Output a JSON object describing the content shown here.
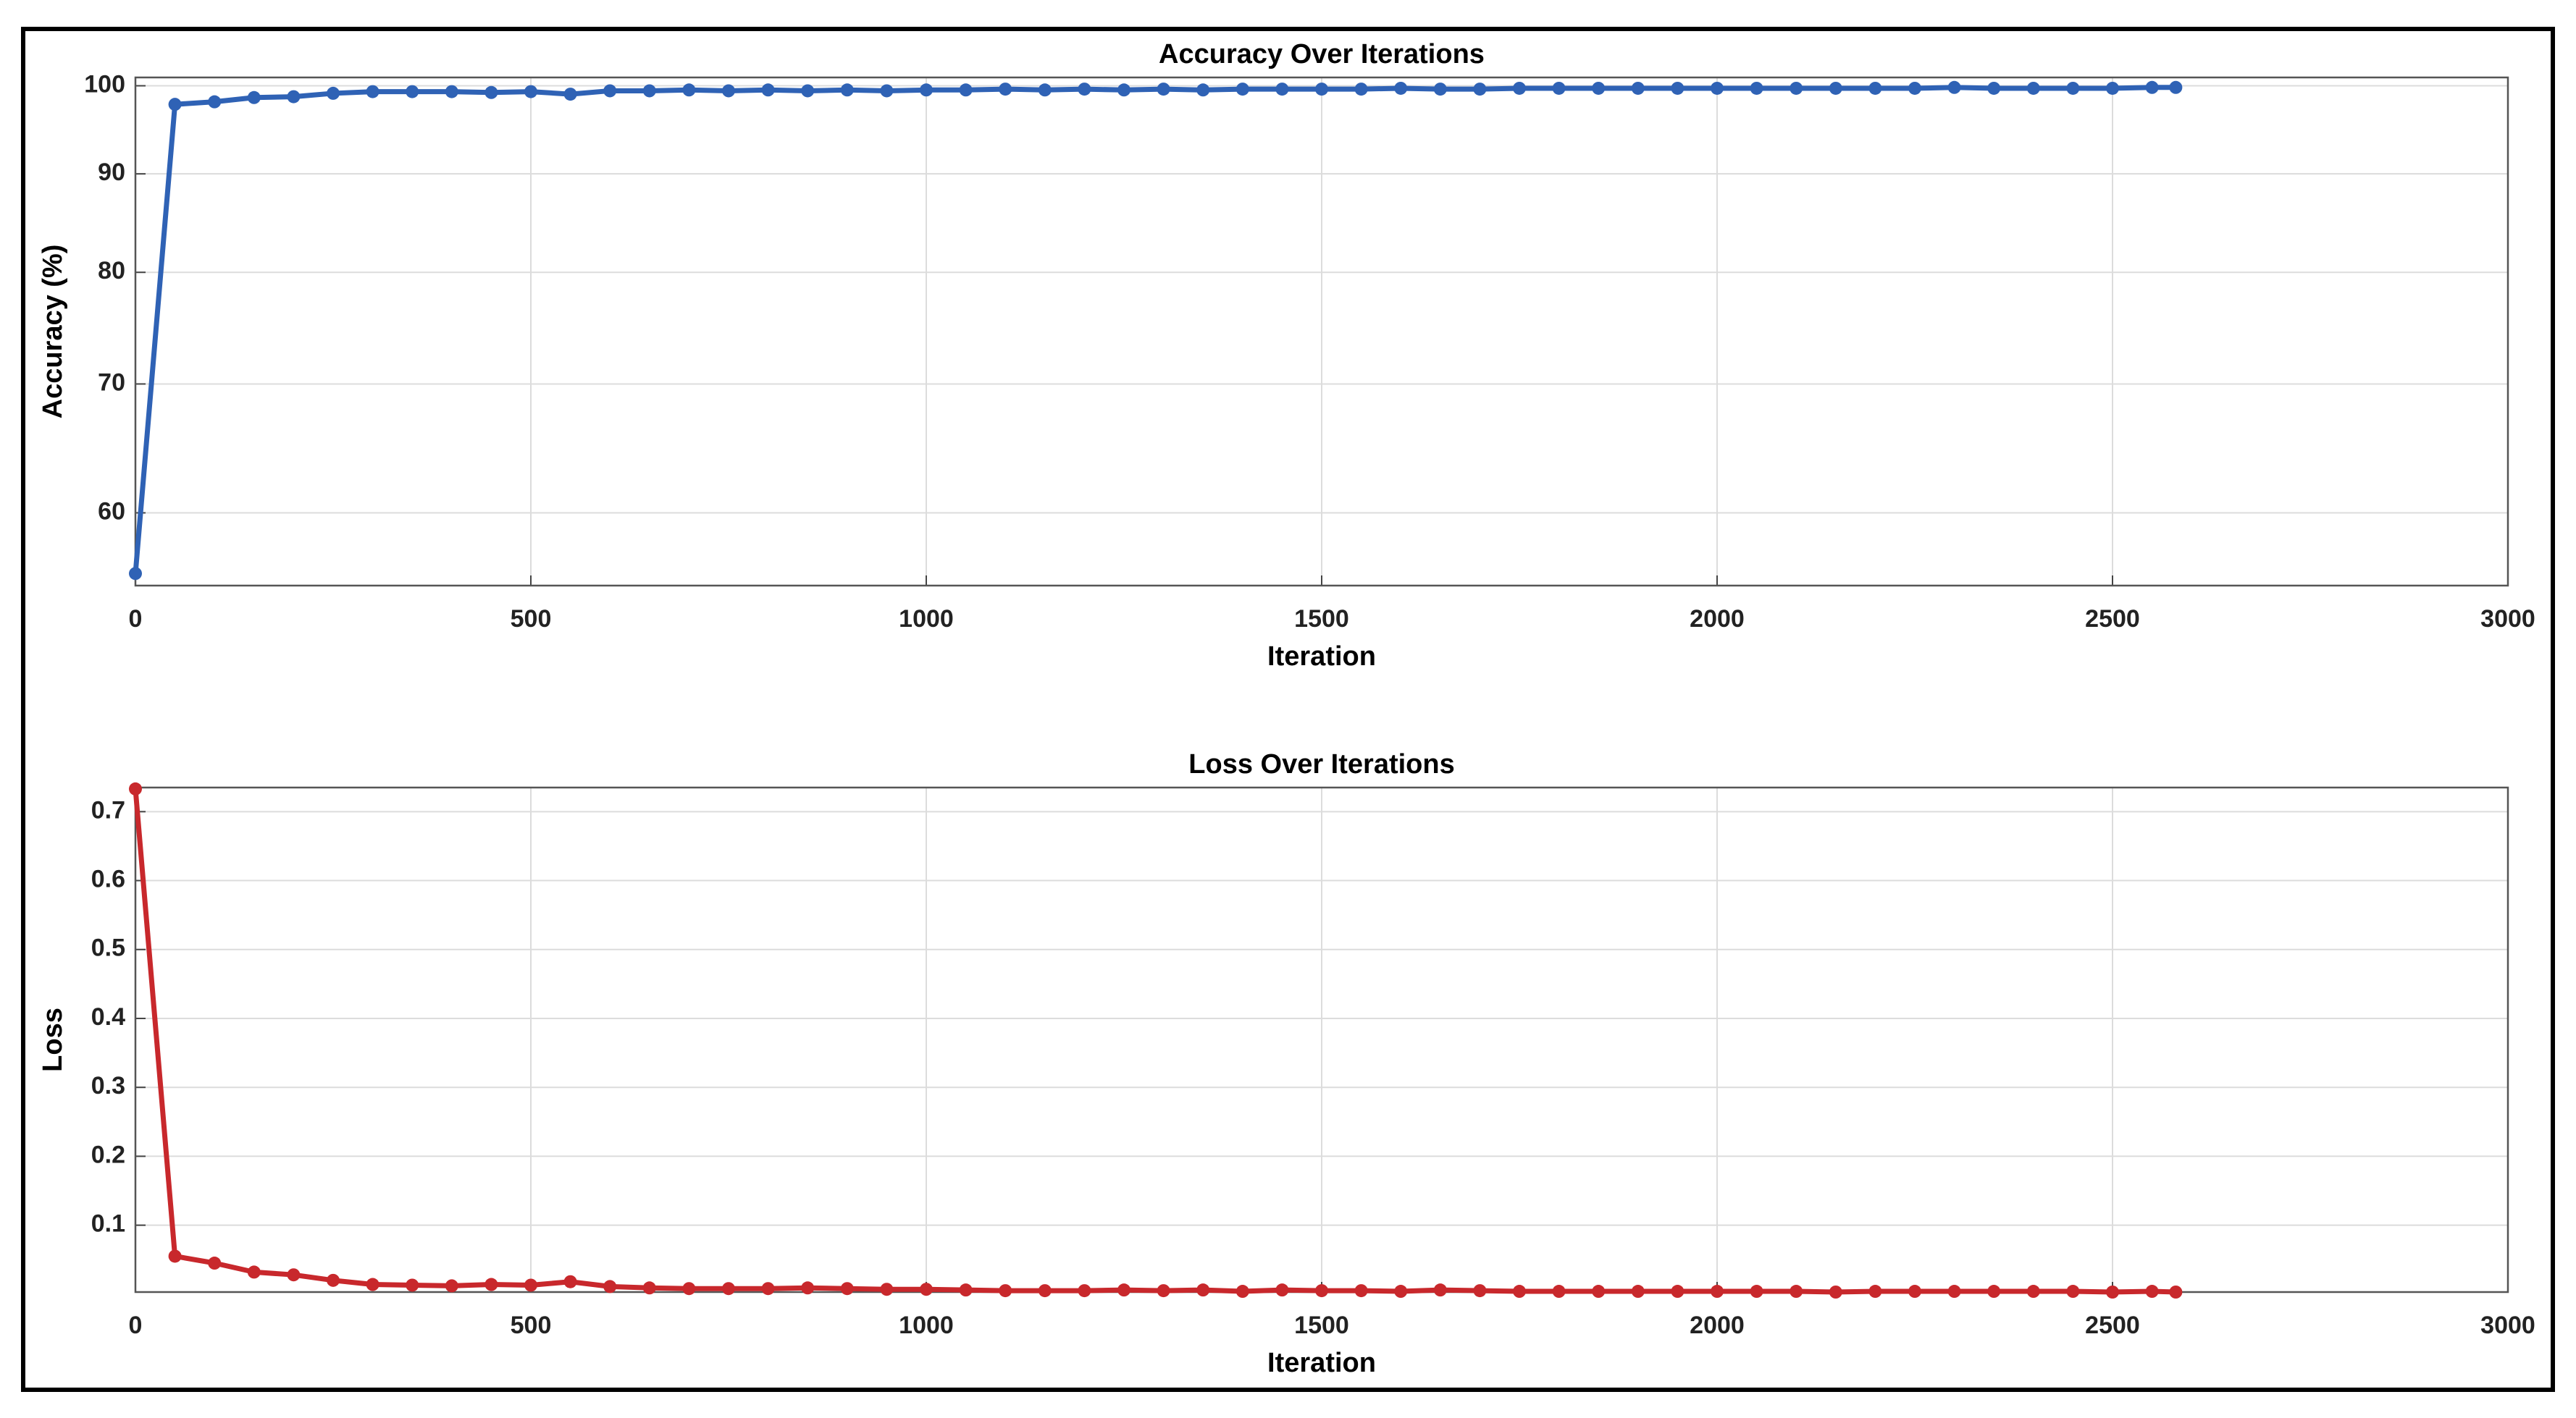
{
  "chart_data": [
    {
      "type": "line",
      "title": "Accuracy Over Iterations",
      "xlabel": "Iteration",
      "ylabel": "Accuracy (%)",
      "x": [
        0,
        50,
        100,
        150,
        200,
        250,
        300,
        350,
        400,
        450,
        500,
        550,
        600,
        650,
        700,
        750,
        800,
        850,
        900,
        950,
        1000,
        1050,
        1100,
        1150,
        1200,
        1250,
        1300,
        1350,
        1400,
        1450,
        1500,
        1550,
        1600,
        1650,
        1700,
        1750,
        1800,
        1850,
        1900,
        1950,
        2000,
        2050,
        2100,
        2150,
        2200,
        2250,
        2300,
        2350,
        2400,
        2450,
        2500,
        2550,
        2580
      ],
      "series": [
        {
          "color": "#2f62b5",
          "values": [
            55.8,
            97.8,
            98.1,
            98.6,
            98.7,
            99.1,
            99.3,
            99.3,
            99.3,
            99.2,
            99.3,
            99.0,
            99.4,
            99.4,
            99.5,
            99.4,
            99.5,
            99.4,
            99.5,
            99.4,
            99.5,
            99.5,
            99.6,
            99.5,
            99.6,
            99.5,
            99.6,
            99.5,
            99.6,
            99.6,
            99.6,
            99.6,
            99.7,
            99.6,
            99.6,
            99.7,
            99.7,
            99.7,
            99.7,
            99.7,
            99.7,
            99.7,
            99.7,
            99.7,
            99.7,
            99.7,
            99.8,
            99.7,
            99.7,
            99.7,
            99.7,
            99.8,
            99.8
          ]
        }
      ],
      "xlim": [
        0,
        3000
      ],
      "xticks": [
        0,
        500,
        1000,
        1500,
        2000,
        2500,
        3000
      ],
      "ylim": [
        55,
        101
      ],
      "yticks": [
        60,
        70,
        80,
        90,
        100
      ],
      "yscale": "log",
      "grid": true
    },
    {
      "type": "line",
      "title": "Loss Over Iterations",
      "xlabel": "Iteration",
      "ylabel": "Loss",
      "x": [
        0,
        50,
        100,
        150,
        200,
        250,
        300,
        350,
        400,
        450,
        500,
        550,
        600,
        650,
        700,
        750,
        800,
        850,
        900,
        950,
        1000,
        1050,
        1100,
        1150,
        1200,
        1250,
        1300,
        1350,
        1400,
        1450,
        1500,
        1550,
        1600,
        1650,
        1700,
        1750,
        1800,
        1850,
        1900,
        1950,
        2000,
        2050,
        2100,
        2150,
        2200,
        2250,
        2300,
        2350,
        2400,
        2450,
        2500,
        2550,
        2580
      ],
      "series": [
        {
          "color": "#c8282c",
          "values": [
            0.733,
            0.055,
            0.045,
            0.032,
            0.028,
            0.02,
            0.014,
            0.013,
            0.012,
            0.014,
            0.013,
            0.018,
            0.011,
            0.009,
            0.008,
            0.008,
            0.008,
            0.009,
            0.008,
            0.007,
            0.007,
            0.006,
            0.005,
            0.005,
            0.005,
            0.006,
            0.005,
            0.006,
            0.004,
            0.006,
            0.005,
            0.005,
            0.004,
            0.006,
            0.005,
            0.004,
            0.004,
            0.004,
            0.004,
            0.004,
            0.004,
            0.004,
            0.004,
            0.003,
            0.004,
            0.004,
            0.004,
            0.004,
            0.004,
            0.004,
            0.003,
            0.004,
            0.003
          ]
        }
      ],
      "xlim": [
        0,
        3000
      ],
      "xticks": [
        0,
        500,
        1000,
        1500,
        2000,
        2500,
        3000
      ],
      "ylim": [
        0.003,
        0.735
      ],
      "yticks": [
        0.1,
        0.2,
        0.3,
        0.4,
        0.5,
        0.6,
        0.7
      ],
      "yscale": "linear",
      "grid": true
    }
  ]
}
